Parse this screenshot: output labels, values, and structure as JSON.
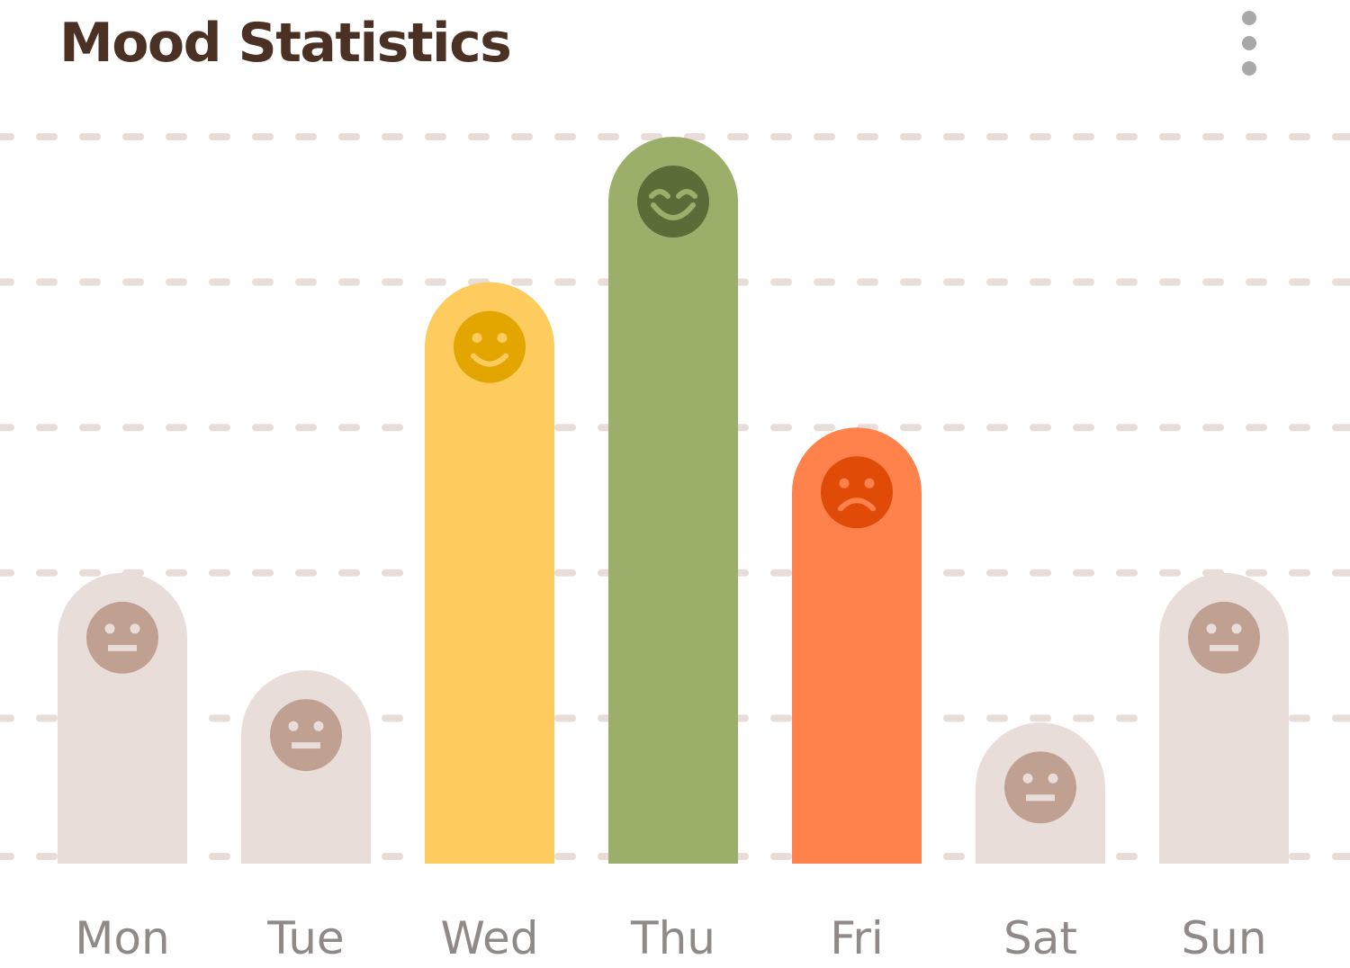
{
  "title": "Mood Statistics",
  "menu_icon": "more-vertical-icon",
  "colors": {
    "title": "#4a3124",
    "grid": "#e8ddd9",
    "label": "#8f8a87",
    "neutral_bar": "#e8ddd9",
    "neutral_face": "#bfa091",
    "happy_bar": "#fecc5e",
    "happy_face": "#e3a600",
    "joyful_bar": "#9caf6a",
    "joyful_face": "#5b6c38",
    "sad_bar": "#ff814c",
    "sad_face": "#e04c07"
  },
  "chart_data": {
    "type": "bar",
    "ylim": [
      0,
      5
    ],
    "grid": true,
    "gridlines": [
      0,
      1,
      2,
      3,
      4,
      5
    ],
    "categories": [
      "Mon",
      "Tue",
      "Wed",
      "Thu",
      "Fri",
      "Sat",
      "Sun"
    ],
    "values": [
      2.0,
      1.33,
      4.0,
      5.0,
      3.0,
      0.97,
      2.0
    ],
    "moods": [
      "neutral",
      "neutral",
      "happy",
      "joyful",
      "sad",
      "neutral",
      "neutral"
    ]
  }
}
